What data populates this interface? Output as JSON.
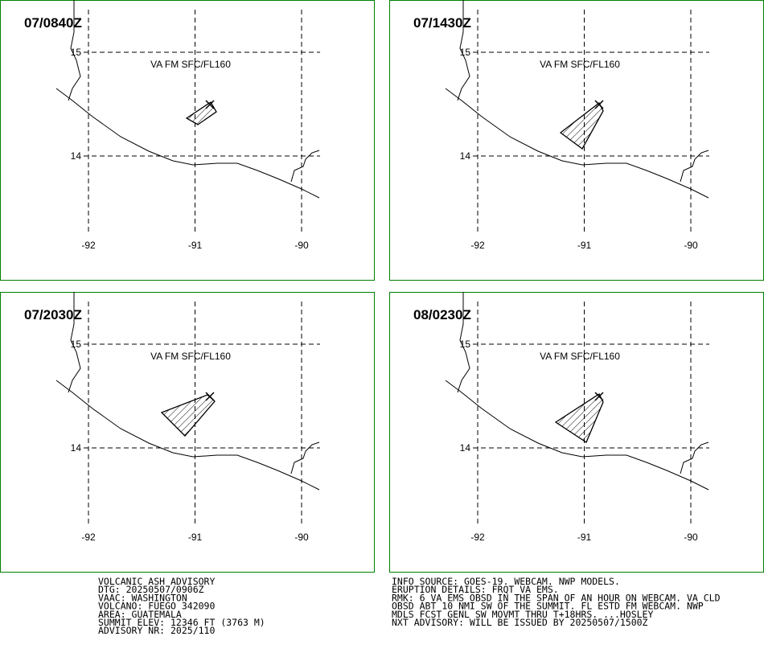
{
  "panels": [
    {
      "time": "07/0840Z",
      "label": "VA FM SFC/FL160"
    },
    {
      "time": "07/1430Z",
      "label": "VA FM SFC/FL160"
    },
    {
      "time": "07/2030Z",
      "label": "VA FM SFC/FL160"
    },
    {
      "time": "08/0230Z",
      "label": "VA FM SFC/FL160"
    }
  ],
  "lat_ticks": [
    15,
    14
  ],
  "lon_ticks": [
    -92,
    -91,
    -90
  ],
  "advisory_left": [
    "VOLCANIC ASH ADVISORY",
    "DTG: 20250507/0906Z",
    "VAAC: WASHINGTON",
    "VOLCANO: FUEGO 342090",
    "AREA: GUATEMALA",
    "SUMMIT ELEV: 12346 FT (3763 M)",
    "ADVISORY NR: 2025/110"
  ],
  "advisory_right": [
    "INFO SOURCE: GOES-19. WEBCAM. NWP MODELS.",
    "ERUPTION DETAILS: FRQT VA EMS.",
    "RMK: 6 VA EMS OBSD IN THE SPAN OF AN HOUR ON WEBCAM. VA CLD",
    "OBSD ABT 10 NMI SW OF THE SUMMIT. FL ESTD FM WEBCAM. NWP",
    "MDLS FCST GENL SW MOVMT THRU T+18HRS. ...HOSLEY",
    "NXT ADVISORY: WILL BE ISSUED BY 20250507/1500Z"
  ]
}
